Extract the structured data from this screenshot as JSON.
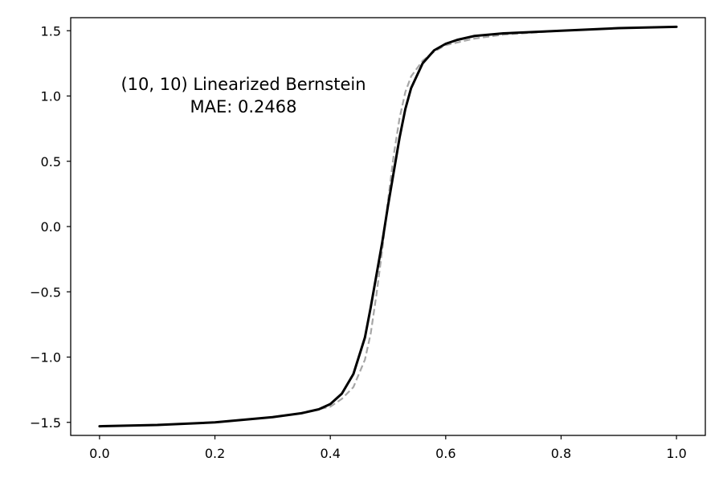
{
  "chart_data": {
    "type": "line",
    "xlim": [
      -0.05,
      1.05
    ],
    "ylim": [
      -1.6,
      1.6
    ],
    "grid": false,
    "x_ticks": [
      0.0,
      0.2,
      0.4,
      0.6,
      0.8,
      1.0
    ],
    "x_tick_labels": [
      "0.0",
      "0.2",
      "0.4",
      "0.6",
      "0.8",
      "1.0"
    ],
    "y_ticks": [
      -1.5,
      -1.0,
      -0.5,
      0.0,
      0.5,
      1.0,
      1.5
    ],
    "y_tick_labels": [
      "−1.5",
      "−1.0",
      "−0.5",
      "0.0",
      "0.5",
      "1.0",
      "1.5"
    ],
    "annotation": {
      "line1": "(10, 10) Linearized Bernstein",
      "line2": "MAE: 0.2468"
    },
    "series": [
      {
        "style": "dashed",
        "color": "#a6a6a6",
        "x": [
          0.0,
          0.1,
          0.2,
          0.3,
          0.35,
          0.4,
          0.42,
          0.44,
          0.46,
          0.47,
          0.48,
          0.49,
          0.5,
          0.51,
          0.52,
          0.53,
          0.54,
          0.56,
          0.58,
          0.6,
          0.65,
          0.7,
          0.8,
          0.9,
          1.0
        ],
        "y": [
          -1.53,
          -1.52,
          -1.5,
          -1.46,
          -1.43,
          -1.38,
          -1.32,
          -1.23,
          -1.02,
          -0.82,
          -0.52,
          -0.18,
          0.2,
          0.55,
          0.83,
          1.03,
          1.15,
          1.27,
          1.34,
          1.39,
          1.44,
          1.47,
          1.5,
          1.52,
          1.53
        ]
      },
      {
        "style": "solid",
        "color": "#000000",
        "x": [
          0.0,
          0.1,
          0.2,
          0.3,
          0.35,
          0.38,
          0.4,
          0.42,
          0.44,
          0.46,
          0.47,
          0.48,
          0.49,
          0.5,
          0.51,
          0.52,
          0.53,
          0.54,
          0.56,
          0.58,
          0.6,
          0.62,
          0.65,
          0.7,
          0.8,
          0.9,
          1.0
        ],
        "y": [
          -1.53,
          -1.52,
          -1.5,
          -1.46,
          -1.43,
          -1.4,
          -1.36,
          -1.28,
          -1.13,
          -0.85,
          -0.62,
          -0.37,
          -0.12,
          0.16,
          0.42,
          0.68,
          0.9,
          1.06,
          1.25,
          1.35,
          1.4,
          1.43,
          1.46,
          1.48,
          1.5,
          1.52,
          1.53
        ]
      }
    ]
  }
}
